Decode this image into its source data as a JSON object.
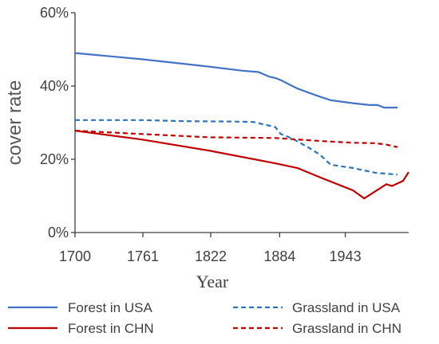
{
  "chart_data": {
    "type": "line",
    "title": "",
    "xlabel": "Year",
    "ylabel": "cover rate",
    "xlim": [
      1700,
      2000
    ],
    "ylim": [
      0,
      60
    ],
    "xticks": [
      "1700",
      "1761",
      "1822",
      "1884",
      "1943"
    ],
    "yticks": [
      "0%",
      "20%",
      "40%",
      "60%"
    ],
    "legend_position": "bottom",
    "grid": false,
    "series": [
      {
        "name": "Forest in USA",
        "color": "#4472C4",
        "dash": "solid",
        "x": [
          1700,
          1760,
          1820,
          1850,
          1865,
          1875,
          1880,
          1885,
          1900,
          1910,
          1920,
          1930,
          1950,
          1965,
          1972,
          1978,
          1985,
          1990
        ],
        "y": [
          49,
          47.3,
          45.3,
          44.2,
          43.8,
          42.5,
          42.2,
          41.6,
          39.3,
          38.2,
          37.1,
          36.1,
          35.3,
          34.8,
          34.8,
          34.1,
          34.1,
          34.1
        ]
      },
      {
        "name": "Grassland in USA",
        "color": "#2E75B6",
        "dash": "dashed",
        "x": [
          1700,
          1760,
          1800,
          1840,
          1860,
          1880,
          1885,
          1895,
          1910,
          1920,
          1930,
          1950,
          1970,
          1990
        ],
        "y": [
          30.7,
          30.7,
          30.4,
          30.3,
          30.2,
          28.8,
          26.9,
          25.7,
          23.2,
          21.3,
          18.5,
          17.6,
          16.3,
          15.8
        ]
      },
      {
        "name": "Forest in CHN",
        "color": "#C00000",
        "dash": "solid",
        "x": [
          1700,
          1760,
          1820,
          1880,
          1900,
          1920,
          1950,
          1960,
          1980,
          1985,
          1995,
          2000
        ],
        "y": [
          27.8,
          25.4,
          22.4,
          18.9,
          17.6,
          15.1,
          11.5,
          9.3,
          13.2,
          12.7,
          14.1,
          16.5
        ]
      },
      {
        "name": "Grassland in CHN",
        "color": "#C00000",
        "dash": "dashed",
        "x": [
          1700,
          1760,
          1820,
          1880,
          1920,
          1950,
          1970,
          1980,
          1990
        ],
        "y": [
          27.8,
          26.9,
          26.0,
          25.8,
          25.0,
          24.5,
          24.4,
          24.0,
          23.3
        ]
      }
    ]
  }
}
